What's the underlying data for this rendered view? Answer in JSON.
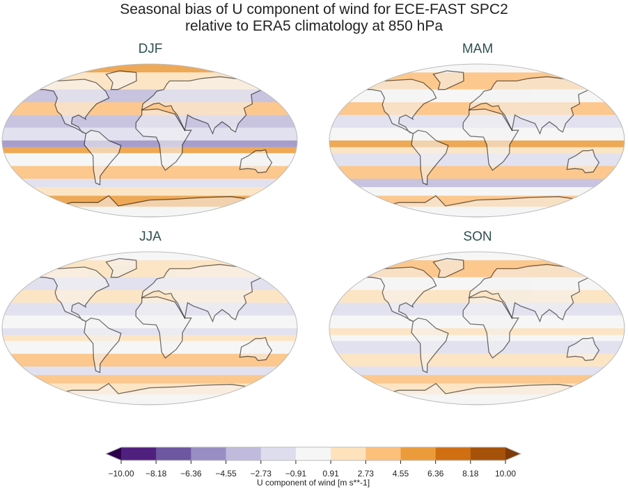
{
  "chart_data": {
    "type": "heatmap",
    "title_line1": "Seasonal bias of U component of wind for ECE-FAST SPC2",
    "title_line2": "relative to ERA5 climatology at 850 hPa",
    "projection": "Robinson",
    "panels": [
      {
        "label": "DJF"
      },
      {
        "label": "MAM"
      },
      {
        "label": "JJA"
      },
      {
        "label": "SON"
      }
    ],
    "colorbar": {
      "label": "U component of wind [m s**-1]",
      "levels": [
        "−10.00",
        "−8.18",
        "−6.36",
        "−4.55",
        "−2.73",
        "−0.91",
        "0.91",
        "2.73",
        "4.55",
        "6.36",
        "8.18",
        "10.00"
      ],
      "level_values": [
        -10,
        -8.18,
        -6.36,
        -4.55,
        -2.73,
        -0.91,
        0.91,
        2.73,
        4.55,
        6.36,
        8.18,
        10
      ],
      "colors": [
        "#50207f",
        "#6d57a0",
        "#998ec3",
        "#c0bbdc",
        "#dedded",
        "#f6f6f6",
        "#fde2bc",
        "#fdc07a",
        "#ec9b3a",
        "#d06e12",
        "#a6520a"
      ],
      "extend_low_color": "#2d004b",
      "extend_high_color": "#7f3b08",
      "extend": "both",
      "placement": "bottom"
    }
  }
}
